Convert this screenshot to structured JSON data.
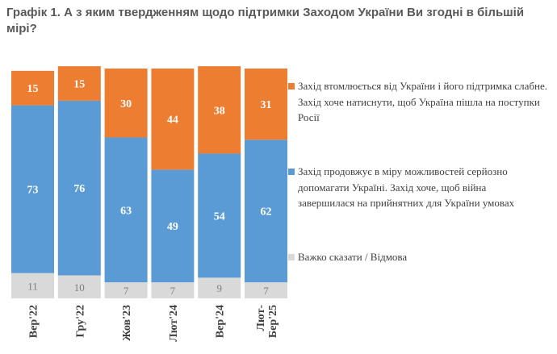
{
  "chart_data": {
    "type": "bar",
    "stacked": true,
    "title": "Графік 1. А з яким твердженням щодо підтримки Заходом України Ви згодні в більшій мірі?",
    "categories": [
      "Вер'22",
      "Гру'22",
      "Жов'23",
      "Лют'24",
      "Вер'24",
      "Лют-Бер'25"
    ],
    "series": [
      {
        "name": "Важко сказати / Відмова",
        "color": "#D9D9D9",
        "values": [
          11,
          10,
          7,
          7,
          9,
          7
        ]
      },
      {
        "name": "Захід продовжує в міру можливостей серйозно допомагати Україні. Захід хоче, щоб війна завершилася на прийнятних для України умовах",
        "color": "#5B9BD5",
        "values": [
          73,
          76,
          63,
          49,
          54,
          62
        ]
      },
      {
        "name": "Захід втомлюється від України і його підтримка слабне. Захід хоче натиснути, щоб Україна пішла на поступки Росії",
        "color": "#ED7D31",
        "values": [
          15,
          15,
          30,
          44,
          38,
          31
        ]
      }
    ],
    "legend_position": "right",
    "grid": false,
    "data_labels": true
  }
}
